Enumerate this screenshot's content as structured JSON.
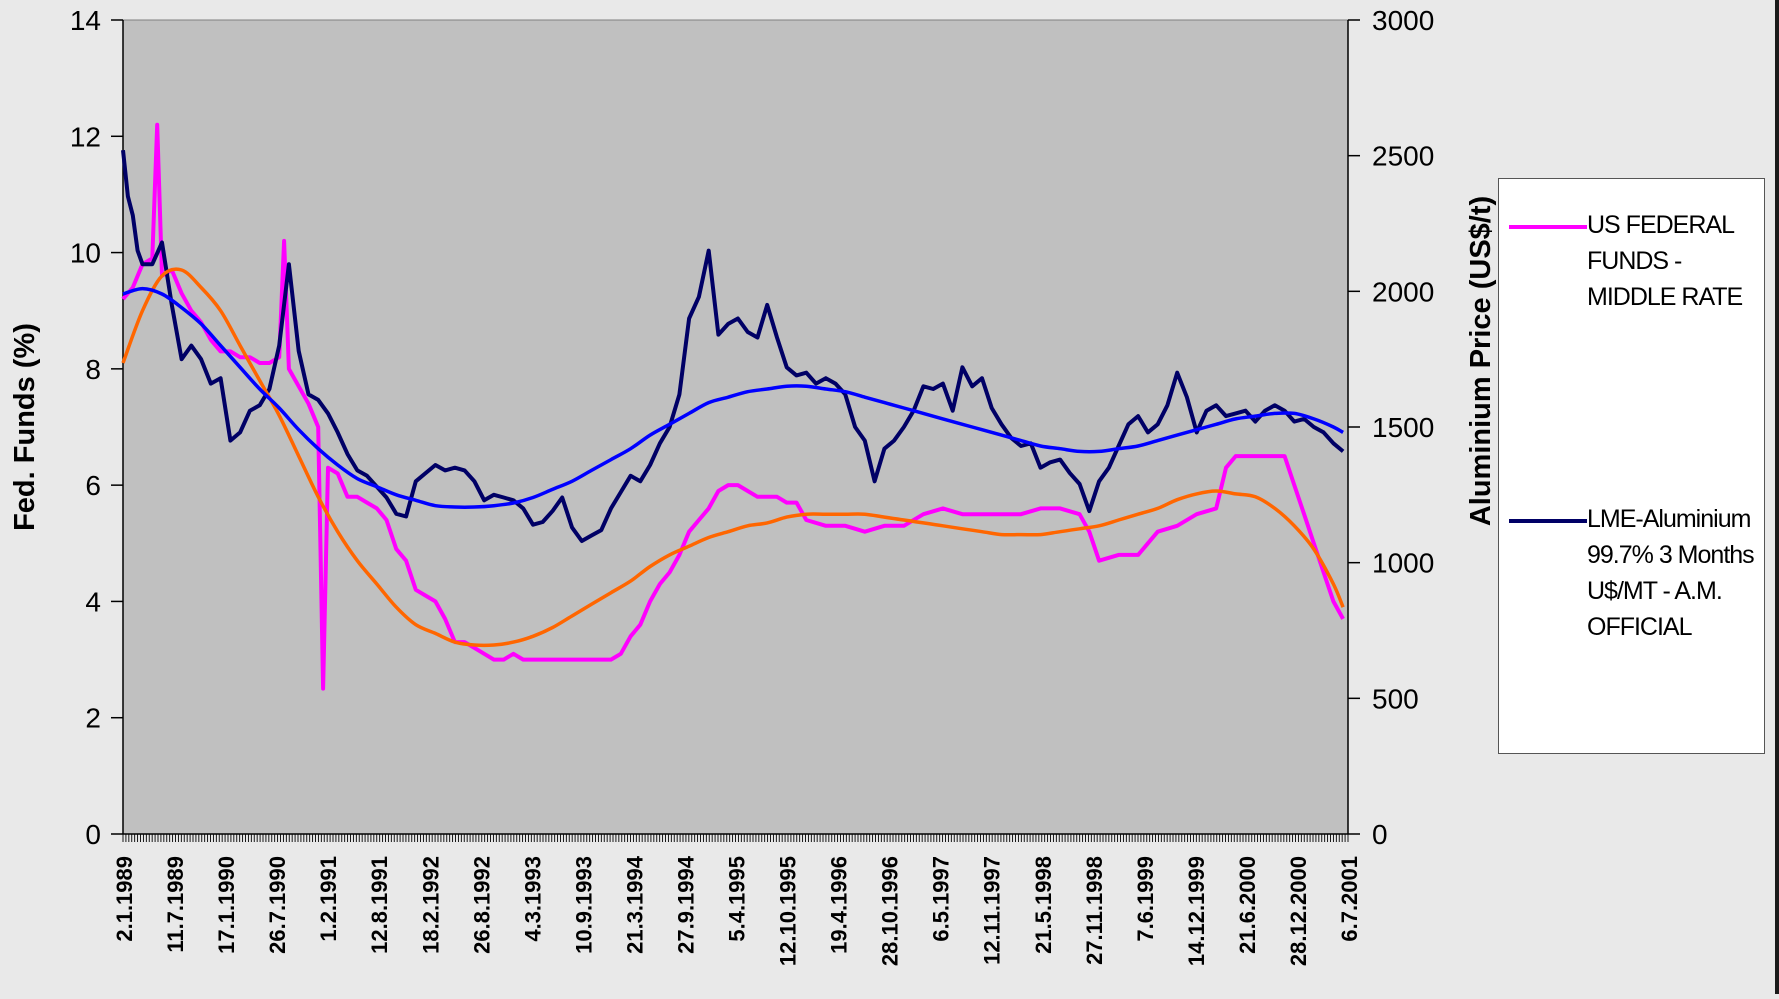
{
  "chart_data": {
    "type": "line",
    "title": "",
    "ylabel": "Fed. Funds (%)",
    "y2label": "Aluminium Price (US$/t)",
    "ylim": [
      0,
      14
    ],
    "y2lim": [
      0,
      3000
    ],
    "yticks": [
      "0",
      "2",
      "4",
      "6",
      "8",
      "10",
      "12",
      "14"
    ],
    "y2ticks": [
      "0",
      "500",
      "1000",
      "1500",
      "2000",
      "2500",
      "3000"
    ],
    "xlim": [
      1989.0,
      2001.55
    ],
    "x_tick_labels": [
      "2.1.1989",
      "11.7.1989",
      "17.1.1990",
      "26.7.1990",
      "1.2.1991",
      "12.8.1991",
      "18.2.1992",
      "26.8.1992",
      "4.3.1993",
      "10.9.1993",
      "21.3.1994",
      "27.9.1994",
      "5.4.1995",
      "12.10.1995",
      "19.4.1996",
      "28.10.1996",
      "6.5.1997",
      "12.11.1997",
      "21.5.1998",
      "27.11.1998",
      "7.6.1999",
      "14.12.1999",
      "21.6.2000",
      "28.12.2000",
      "6.7.2001"
    ],
    "plot_background": "#c0c0c0",
    "legend_position": "right",
    "series": [
      {
        "name": "US FEDERAL FUNDS - MIDDLE RATE",
        "axis": "left",
        "color": "#ff00ff",
        "x": [
          1989.0,
          1989.1,
          1989.2,
          1989.3,
          1989.35,
          1989.4,
          1989.5,
          1989.6,
          1989.7,
          1989.8,
          1989.9,
          1990.0,
          1990.1,
          1990.2,
          1990.3,
          1990.4,
          1990.5,
          1990.6,
          1990.65,
          1990.7,
          1990.8,
          1990.9,
          1991.0,
          1991.05,
          1991.1,
          1991.2,
          1991.3,
          1991.4,
          1991.5,
          1991.6,
          1991.7,
          1991.8,
          1991.9,
          1992.0,
          1992.1,
          1992.2,
          1992.3,
          1992.4,
          1992.5,
          1992.6,
          1992.7,
          1992.8,
          1992.9,
          1993.0,
          1993.1,
          1993.2,
          1993.3,
          1993.4,
          1993.5,
          1993.6,
          1993.7,
          1993.8,
          1993.9,
          1994.0,
          1994.1,
          1994.2,
          1994.3,
          1994.4,
          1994.5,
          1994.6,
          1994.7,
          1994.8,
          1994.9,
          1995.0,
          1995.1,
          1995.2,
          1995.3,
          1995.4,
          1995.5,
          1995.6,
          1995.7,
          1995.8,
          1995.9,
          1996.0,
          1996.2,
          1996.4,
          1996.6,
          1996.8,
          1997.0,
          1997.2,
          1997.4,
          1997.6,
          1997.8,
          1998.0,
          1998.2,
          1998.4,
          1998.6,
          1998.8,
          1998.9,
          1999.0,
          1999.2,
          1999.4,
          1999.6,
          1999.8,
          2000.0,
          2000.2,
          2000.3,
          2000.4,
          2000.6,
          2000.8,
          2000.9,
          2001.0,
          2001.1,
          2001.2,
          2001.3,
          2001.4,
          2001.5
        ],
        "y": [
          9.2,
          9.4,
          9.8,
          9.9,
          12.2,
          9.6,
          9.7,
          9.3,
          9.0,
          8.8,
          8.5,
          8.3,
          8.3,
          8.2,
          8.2,
          8.1,
          8.1,
          8.2,
          10.2,
          8.0,
          7.7,
          7.4,
          7.0,
          2.5,
          6.3,
          6.2,
          5.8,
          5.8,
          5.7,
          5.6,
          5.4,
          4.9,
          4.7,
          4.2,
          4.1,
          4.0,
          3.7,
          3.3,
          3.3,
          3.2,
          3.1,
          3.0,
          3.0,
          3.1,
          3.0,
          3.0,
          3.0,
          3.0,
          3.0,
          3.0,
          3.0,
          3.0,
          3.0,
          3.0,
          3.1,
          3.4,
          3.6,
          4.0,
          4.3,
          4.5,
          4.8,
          5.2,
          5.4,
          5.6,
          5.9,
          6.0,
          6.0,
          5.9,
          5.8,
          5.8,
          5.8,
          5.7,
          5.7,
          5.4,
          5.3,
          5.3,
          5.2,
          5.3,
          5.3,
          5.5,
          5.6,
          5.5,
          5.5,
          5.5,
          5.5,
          5.6,
          5.6,
          5.5,
          5.2,
          4.7,
          4.8,
          4.8,
          5.2,
          5.3,
          5.5,
          5.6,
          6.3,
          6.5,
          6.5,
          6.5,
          6.5,
          6.0,
          5.5,
          5.0,
          4.5,
          4.0,
          3.7
        ]
      },
      {
        "name": "LME-Aluminium 99.7% 3 Months U$/MT - A.M. OFFICIAL",
        "axis": "right",
        "color": "#000066",
        "x": [
          1989.0,
          1989.05,
          1989.1,
          1989.15,
          1989.2,
          1989.3,
          1989.4,
          1989.5,
          1989.6,
          1989.7,
          1989.8,
          1989.9,
          1990.0,
          1990.1,
          1990.2,
          1990.3,
          1990.4,
          1990.5,
          1990.6,
          1990.7,
          1990.8,
          1990.9,
          1991.0,
          1991.1,
          1991.2,
          1991.3,
          1991.4,
          1991.5,
          1991.6,
          1991.7,
          1991.8,
          1991.9,
          1992.0,
          1992.1,
          1992.2,
          1992.3,
          1992.4,
          1992.5,
          1992.6,
          1992.7,
          1992.8,
          1992.9,
          1993.0,
          1993.1,
          1993.2,
          1993.3,
          1993.4,
          1993.5,
          1993.6,
          1993.7,
          1993.8,
          1993.9,
          1994.0,
          1994.1,
          1994.2,
          1994.3,
          1994.4,
          1994.5,
          1994.6,
          1994.7,
          1994.8,
          1994.9,
          1995.0,
          1995.1,
          1995.2,
          1995.3,
          1995.4,
          1995.5,
          1995.6,
          1995.7,
          1995.8,
          1995.9,
          1996.0,
          1996.1,
          1996.2,
          1996.3,
          1996.4,
          1996.5,
          1996.6,
          1996.7,
          1996.8,
          1996.9,
          1997.0,
          1997.1,
          1997.2,
          1997.3,
          1997.4,
          1997.5,
          1997.6,
          1997.7,
          1997.8,
          1997.9,
          1998.0,
          1998.1,
          1998.2,
          1998.3,
          1998.4,
          1998.5,
          1998.6,
          1998.7,
          1998.8,
          1998.9,
          1999.0,
          1999.1,
          1999.2,
          1999.3,
          1999.4,
          1999.5,
          1999.6,
          1999.7,
          1999.8,
          1999.9,
          2000.0,
          2000.1,
          2000.2,
          2000.3,
          2000.4,
          2000.5,
          2000.6,
          2000.7,
          2000.8,
          2000.9,
          2001.0,
          2001.1,
          2001.2,
          2001.3,
          2001.4,
          2001.5
        ],
        "y": [
          2520,
          2350,
          2280,
          2150,
          2100,
          2100,
          2180,
          1950,
          1750,
          1800,
          1750,
          1660,
          1680,
          1450,
          1480,
          1560,
          1580,
          1640,
          1800,
          2100,
          1780,
          1620,
          1600,
          1550,
          1480,
          1400,
          1340,
          1320,
          1280,
          1240,
          1180,
          1170,
          1300,
          1330,
          1360,
          1340,
          1350,
          1340,
          1300,
          1230,
          1250,
          1240,
          1230,
          1200,
          1140,
          1150,
          1190,
          1240,
          1130,
          1080,
          1100,
          1120,
          1200,
          1260,
          1320,
          1300,
          1360,
          1440,
          1500,
          1620,
          1900,
          1980,
          2150,
          1840,
          1880,
          1900,
          1850,
          1830,
          1950,
          1830,
          1720,
          1690,
          1700,
          1660,
          1680,
          1660,
          1620,
          1500,
          1450,
          1300,
          1420,
          1450,
          1500,
          1560,
          1650,
          1640,
          1660,
          1560,
          1720,
          1650,
          1680,
          1570,
          1510,
          1460,
          1430,
          1440,
          1350,
          1370,
          1380,
          1330,
          1290,
          1190,
          1300,
          1350,
          1430,
          1510,
          1540,
          1480,
          1510,
          1580,
          1700,
          1610,
          1480,
          1560,
          1580,
          1540,
          1550,
          1560,
          1520,
          1560,
          1580,
          1560,
          1520,
          1530,
          1500,
          1480,
          1440,
          1410
        ]
      },
      {
        "name": "",
        "axis": "left",
        "color": "#ff6600",
        "x": [
          1989.0,
          1989.2,
          1989.4,
          1989.6,
          1989.8,
          1990.0,
          1990.2,
          1990.4,
          1990.6,
          1990.8,
          1991.0,
          1991.2,
          1991.4,
          1991.6,
          1991.8,
          1992.0,
          1992.2,
          1992.4,
          1992.6,
          1992.8,
          1993.0,
          1993.2,
          1993.4,
          1993.6,
          1993.8,
          1994.0,
          1994.2,
          1994.4,
          1994.6,
          1994.8,
          1995.0,
          1995.2,
          1995.4,
          1995.6,
          1995.8,
          1996.0,
          1996.2,
          1996.4,
          1996.6,
          1996.8,
          1997.0,
          1997.2,
          1997.4,
          1997.6,
          1997.8,
          1998.0,
          1998.2,
          1998.4,
          1998.6,
          1998.8,
          1999.0,
          1999.2,
          1999.4,
          1999.6,
          1999.8,
          2000.0,
          2000.2,
          2000.4,
          2000.6,
          2000.8,
          2001.0,
          2001.2,
          2001.4,
          2001.5
        ],
        "y": [
          8.1,
          9.0,
          9.6,
          9.7,
          9.4,
          9.0,
          8.4,
          7.8,
          7.2,
          6.5,
          5.8,
          5.2,
          4.7,
          4.3,
          3.9,
          3.6,
          3.45,
          3.3,
          3.25,
          3.25,
          3.3,
          3.4,
          3.55,
          3.75,
          3.95,
          4.15,
          4.35,
          4.6,
          4.8,
          4.95,
          5.1,
          5.2,
          5.3,
          5.35,
          5.45,
          5.5,
          5.5,
          5.5,
          5.5,
          5.45,
          5.4,
          5.35,
          5.3,
          5.25,
          5.2,
          5.15,
          5.15,
          5.15,
          5.2,
          5.25,
          5.3,
          5.4,
          5.5,
          5.6,
          5.75,
          5.85,
          5.9,
          5.85,
          5.8,
          5.6,
          5.3,
          4.9,
          4.3,
          3.9
        ]
      },
      {
        "name": "",
        "axis": "right",
        "color": "#0000ff",
        "x": [
          1989.0,
          1989.2,
          1989.4,
          1989.6,
          1989.8,
          1990.0,
          1990.2,
          1990.4,
          1990.6,
          1990.8,
          1991.0,
          1991.2,
          1991.4,
          1991.6,
          1991.8,
          1992.0,
          1992.2,
          1992.4,
          1992.6,
          1992.8,
          1993.0,
          1993.2,
          1993.4,
          1993.6,
          1993.8,
          1994.0,
          1994.2,
          1994.4,
          1994.6,
          1994.8,
          1995.0,
          1995.2,
          1995.4,
          1995.6,
          1995.8,
          1996.0,
          1996.2,
          1996.4,
          1996.6,
          1996.8,
          1997.0,
          1997.2,
          1997.4,
          1997.6,
          1997.8,
          1998.0,
          1998.2,
          1998.4,
          1998.6,
          1998.8,
          1999.0,
          1999.2,
          1999.4,
          1999.6,
          1999.8,
          2000.0,
          2000.2,
          2000.4,
          2000.6,
          2000.8,
          2001.0,
          2001.2,
          2001.4,
          2001.5
        ],
        "y": [
          1990,
          2010,
          1990,
          1940,
          1880,
          1800,
          1720,
          1640,
          1570,
          1490,
          1420,
          1360,
          1310,
          1280,
          1250,
          1230,
          1210,
          1205,
          1205,
          1210,
          1220,
          1240,
          1270,
          1300,
          1340,
          1380,
          1420,
          1470,
          1510,
          1550,
          1590,
          1610,
          1630,
          1640,
          1650,
          1650,
          1640,
          1630,
          1610,
          1590,
          1570,
          1550,
          1530,
          1510,
          1490,
          1470,
          1450,
          1430,
          1420,
          1410,
          1410,
          1420,
          1430,
          1450,
          1470,
          1490,
          1510,
          1530,
          1540,
          1550,
          1550,
          1530,
          1500,
          1480
        ]
      }
    ]
  },
  "legend": {
    "items": [
      {
        "label": "US FEDERAL FUNDS - MIDDLE RATE",
        "color": "#ff00ff"
      },
      {
        "label": "LME-Aluminium 99.7% 3 Months U$/MT - A.M. OFFICIAL",
        "color": "#000066"
      }
    ]
  }
}
